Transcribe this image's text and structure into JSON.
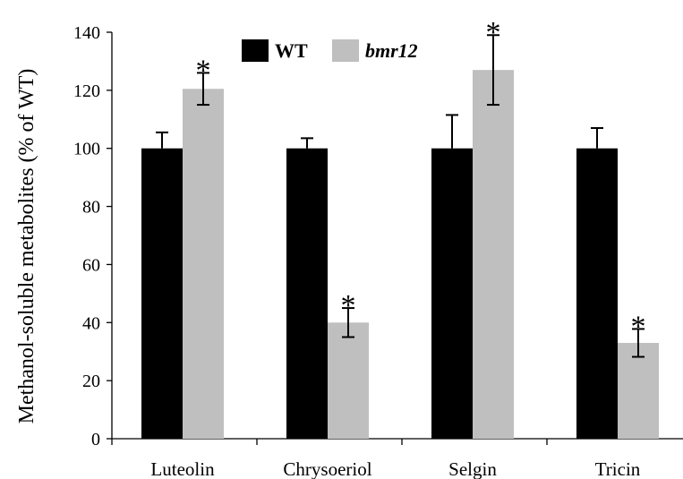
{
  "chart_data": {
    "type": "bar",
    "ylabel": "Methanol-soluble metabolites (% of WT)",
    "xlabel": "",
    "ylim": [
      0,
      140
    ],
    "yticks": [
      0,
      20,
      40,
      60,
      80,
      100,
      120,
      140
    ],
    "grid": false,
    "legend_position": "top-center",
    "categories": [
      "Luteolin",
      "Chrysoeriol",
      "Selgin",
      "Tricin"
    ],
    "series": [
      {
        "name": "WT",
        "color": "#000000",
        "values": [
          100,
          100,
          100,
          100
        ],
        "errors": [
          5.5,
          3.5,
          11.5,
          7.0
        ],
        "error_bar_direction": "up"
      },
      {
        "name": "bmr12",
        "color": "#bfbfbf",
        "values": [
          120.5,
          40,
          127,
          33
        ],
        "errors": [
          5.5,
          5.0,
          12.0,
          4.8
        ],
        "error_bar_direction": "both"
      }
    ],
    "annotations": [
      {
        "series": "bmr12",
        "category": "Luteolin",
        "text": "*"
      },
      {
        "series": "bmr12",
        "category": "Chrysoeriol",
        "text": "*"
      },
      {
        "series": "bmr12",
        "category": "Selgin",
        "text": "*"
      },
      {
        "series": "bmr12",
        "category": "Tricin",
        "text": "*"
      }
    ]
  }
}
